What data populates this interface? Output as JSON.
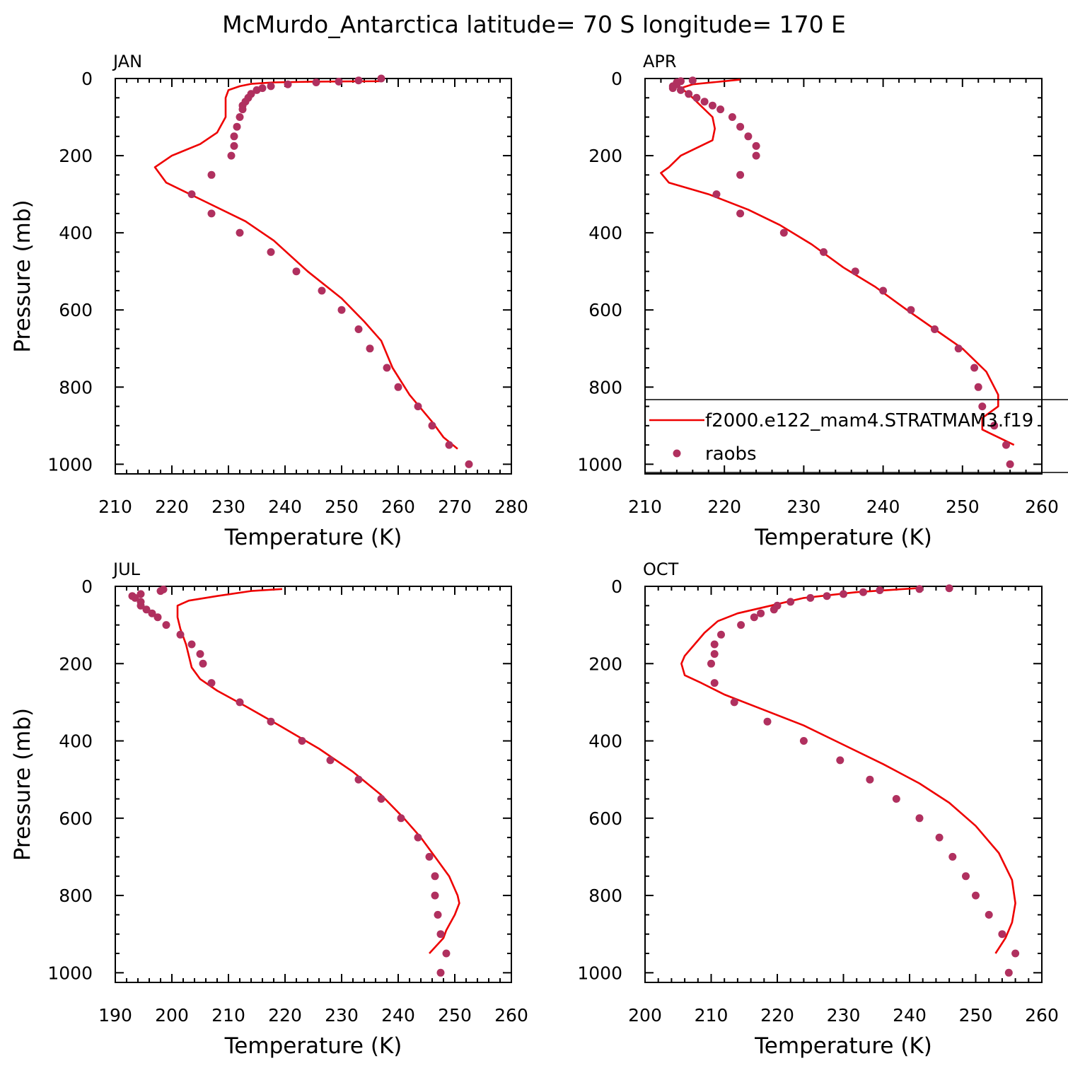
{
  "figure": {
    "title": "McMurdo_Antarctica  latitude= 70 S longitude= 170 E",
    "model_color": "#ee0000",
    "obs_color": "#b0305f"
  },
  "legend": {
    "panel": 1,
    "entries": [
      {
        "label": "f2000.e122_mam4.STRATMAM3.f19",
        "kind": "line"
      },
      {
        "label": "raobs",
        "kind": "marker"
      }
    ]
  },
  "chart_data": [
    {
      "type": "line",
      "title": "JAN",
      "xlabel": "Temperature (K)",
      "ylabel": "Pressure (mb)",
      "xlim": [
        210,
        280
      ],
      "ylim": [
        1025,
        0
      ],
      "xticks": [
        210,
        220,
        230,
        240,
        250,
        260,
        270,
        280
      ],
      "yticks": [
        0,
        200,
        400,
        600,
        800,
        1000
      ],
      "series": [
        {
          "name": "f2000.e122_mam4.STRATMAM3.f19",
          "kind": "line",
          "points": [
            [
              257,
              7
            ],
            [
              245,
              8
            ],
            [
              238,
              10
            ],
            [
              234,
              14
            ],
            [
              232,
              20
            ],
            [
              230,
              30
            ],
            [
              229.5,
              50
            ],
            [
              229.5,
              100
            ],
            [
              228,
              140
            ],
            [
              225,
              170
            ],
            [
              220,
              200
            ],
            [
              217,
              230
            ],
            [
              219,
              270
            ],
            [
              226,
              320
            ],
            [
              233,
              370
            ],
            [
              238,
              420
            ],
            [
              244,
              500
            ],
            [
              250,
              570
            ],
            [
              254,
              630
            ],
            [
              257,
              680
            ],
            [
              259,
              750
            ],
            [
              262,
              820
            ],
            [
              266,
              890
            ],
            [
              268,
              930
            ],
            [
              270.5,
              960
            ]
          ]
        },
        {
          "name": "raobs",
          "kind": "scatter",
          "points": [
            [
              257,
              0
            ],
            [
              253,
              5
            ],
            [
              249.5,
              8
            ],
            [
              245.5,
              10
            ],
            [
              240.5,
              15
            ],
            [
              237.5,
              20
            ],
            [
              236,
              25
            ],
            [
              235,
              30
            ],
            [
              234,
              40
            ],
            [
              233.5,
              50
            ],
            [
              233,
              60
            ],
            [
              232.5,
              70
            ],
            [
              232.5,
              80
            ],
            [
              232,
              100
            ],
            [
              231.5,
              125
            ],
            [
              231,
              150
            ],
            [
              231,
              175
            ],
            [
              230.5,
              200
            ],
            [
              227,
              250
            ],
            [
              223.5,
              300
            ],
            [
              227,
              350
            ],
            [
              232,
              400
            ],
            [
              237.5,
              450
            ],
            [
              242,
              500
            ],
            [
              246.5,
              550
            ],
            [
              250,
              600
            ],
            [
              253,
              650
            ],
            [
              255,
              700
            ],
            [
              258,
              750
            ],
            [
              260,
              800
            ],
            [
              263.5,
              850
            ],
            [
              266,
              900
            ],
            [
              269,
              950
            ],
            [
              272.5,
              1000
            ]
          ]
        }
      ]
    },
    {
      "type": "line",
      "title": "APR",
      "xlabel": "Temperature (K)",
      "ylabel": "",
      "xlim": [
        210,
        260
      ],
      "ylim": [
        1025,
        0
      ],
      "xticks": [
        210,
        220,
        230,
        240,
        250,
        260
      ],
      "yticks": [
        0,
        200,
        400,
        600,
        800,
        1000
      ],
      "series": [
        {
          "name": "f2000.e122_mam4.STRATMAM3.f19",
          "kind": "line",
          "points": [
            [
              222,
              3
            ],
            [
              216,
              15
            ],
            [
              214.5,
              25
            ],
            [
              215.5,
              40
            ],
            [
              217,
              70
            ],
            [
              218.5,
              100
            ],
            [
              218.8,
              130
            ],
            [
              218.5,
              160
            ],
            [
              216.5,
              180
            ],
            [
              214.5,
              200
            ],
            [
              213,
              230
            ],
            [
              212,
              245
            ],
            [
              213,
              270
            ],
            [
              218,
              300
            ],
            [
              223,
              340
            ],
            [
              227,
              380
            ],
            [
              231,
              430
            ],
            [
              235,
              490
            ],
            [
              239,
              540
            ],
            [
              243,
              600
            ],
            [
              246.5,
              650
            ],
            [
              250,
              700
            ],
            [
              253,
              760
            ],
            [
              254.5,
              820
            ],
            [
              254.5,
              850
            ],
            [
              252.5,
              880
            ],
            [
              252.5,
              910
            ],
            [
              254.5,
              930
            ],
            [
              256.5,
              950
            ]
          ]
        },
        {
          "name": "raobs",
          "kind": "scatter",
          "points": [
            [
              216,
              5
            ],
            [
              214.5,
              7
            ],
            [
              214,
              10
            ],
            [
              214,
              15
            ],
            [
              213.5,
              20
            ],
            [
              213.5,
              25
            ],
            [
              214.5,
              30
            ],
            [
              215.5,
              40
            ],
            [
              216.5,
              50
            ],
            [
              217.5,
              60
            ],
            [
              218.5,
              70
            ],
            [
              219.5,
              80
            ],
            [
              221,
              100
            ],
            [
              222,
              125
            ],
            [
              223,
              150
            ],
            [
              224,
              175
            ],
            [
              224,
              200
            ],
            [
              222,
              250
            ],
            [
              219,
              300
            ],
            [
              222,
              350
            ],
            [
              227.5,
              400
            ],
            [
              232.5,
              450
            ],
            [
              236.5,
              500
            ],
            [
              240,
              550
            ],
            [
              243.5,
              600
            ],
            [
              246.5,
              650
            ],
            [
              249.5,
              700
            ],
            [
              251.5,
              750
            ],
            [
              252,
              800
            ],
            [
              252.5,
              850
            ],
            [
              254,
              900
            ],
            [
              255.5,
              950
            ],
            [
              256,
              1000
            ]
          ]
        }
      ]
    },
    {
      "type": "line",
      "title": "JUL",
      "xlabel": "Temperature (K)",
      "ylabel": "Pressure (mb)",
      "xlim": [
        190,
        260
      ],
      "ylim": [
        1025,
        0
      ],
      "xticks": [
        190,
        200,
        210,
        220,
        230,
        240,
        250,
        260
      ],
      "yticks": [
        0,
        200,
        400,
        600,
        800,
        1000
      ],
      "series": [
        {
          "name": "f2000.e122_mam4.STRATMAM3.f19",
          "kind": "line",
          "points": [
            [
              219.5,
              7
            ],
            [
              214,
              12
            ],
            [
              208,
              25
            ],
            [
              203,
              37
            ],
            [
              201,
              50
            ],
            [
              201,
              80
            ],
            [
              201.5,
              110
            ],
            [
              202.5,
              150
            ],
            [
              203,
              180
            ],
            [
              203.5,
              210
            ],
            [
              205,
              240
            ],
            [
              208,
              270
            ],
            [
              213,
              310
            ],
            [
              219,
              360
            ],
            [
              226,
              420
            ],
            [
              232,
              480
            ],
            [
              237,
              540
            ],
            [
              241,
              600
            ],
            [
              244,
              650
            ],
            [
              246.5,
              700
            ],
            [
              249,
              750
            ],
            [
              250.5,
              800
            ],
            [
              250.8,
              820
            ],
            [
              250,
              850
            ],
            [
              248.5,
              890
            ],
            [
              248,
              910
            ],
            [
              245.5,
              950
            ]
          ]
        },
        {
          "name": "raobs",
          "kind": "scatter",
          "points": [
            [
              198.5,
              8
            ],
            [
              198,
              12
            ],
            [
              194.5,
              20
            ],
            [
              193,
              25
            ],
            [
              193.5,
              30
            ],
            [
              194.5,
              40
            ],
            [
              194.5,
              50
            ],
            [
              195.5,
              60
            ],
            [
              196.5,
              70
            ],
            [
              197.5,
              80
            ],
            [
              199,
              100
            ],
            [
              201.5,
              125
            ],
            [
              203.5,
              150
            ],
            [
              205,
              175
            ],
            [
              205.5,
              200
            ],
            [
              207,
              250
            ],
            [
              212,
              300
            ],
            [
              217.5,
              350
            ],
            [
              223,
              400
            ],
            [
              228,
              450
            ],
            [
              233,
              500
            ],
            [
              237,
              550
            ],
            [
              240.5,
              600
            ],
            [
              243.5,
              650
            ],
            [
              245.5,
              700
            ],
            [
              246.5,
              750
            ],
            [
              246.5,
              800
            ],
            [
              247,
              850
            ],
            [
              247.5,
              900
            ],
            [
              248.5,
              950
            ],
            [
              247.5,
              1000
            ]
          ]
        }
      ]
    },
    {
      "type": "line",
      "title": "OCT",
      "xlabel": "Temperature (K)",
      "ylabel": "",
      "xlim": [
        200,
        260
      ],
      "ylim": [
        1025,
        0
      ],
      "xticks": [
        200,
        210,
        220,
        230,
        240,
        250,
        260
      ],
      "yticks": [
        0,
        200,
        400,
        600,
        800,
        1000
      ],
      "series": [
        {
          "name": "f2000.e122_mam4.STRATMAM3.f19",
          "kind": "line",
          "points": [
            [
              241,
              5
            ],
            [
              232,
              15
            ],
            [
              224,
              30
            ],
            [
              219,
              50
            ],
            [
              214,
              70
            ],
            [
              211,
              90
            ],
            [
              209,
              120
            ],
            [
              207.5,
              150
            ],
            [
              206,
              180
            ],
            [
              205.5,
              200
            ],
            [
              206,
              230
            ],
            [
              208.5,
              250
            ],
            [
              212,
              280
            ],
            [
              218,
              320
            ],
            [
              224,
              360
            ],
            [
              230,
              410
            ],
            [
              236,
              460
            ],
            [
              241.5,
              510
            ],
            [
              246,
              560
            ],
            [
              250,
              620
            ],
            [
              253.5,
              690
            ],
            [
              255.5,
              760
            ],
            [
              256,
              820
            ],
            [
              255.5,
              870
            ],
            [
              254.5,
              910
            ],
            [
              253,
              950
            ]
          ]
        },
        {
          "name": "raobs",
          "kind": "scatter",
          "points": [
            [
              246,
              5
            ],
            [
              241.5,
              7
            ],
            [
              235.5,
              10
            ],
            [
              233,
              15
            ],
            [
              230,
              20
            ],
            [
              227.5,
              25
            ],
            [
              225,
              30
            ],
            [
              222,
              40
            ],
            [
              220,
              50
            ],
            [
              219.5,
              60
            ],
            [
              217.5,
              70
            ],
            [
              216.5,
              80
            ],
            [
              214.5,
              100
            ],
            [
              211.5,
              125
            ],
            [
              210.5,
              150
            ],
            [
              210.5,
              175
            ],
            [
              210,
              200
            ],
            [
              210.5,
              250
            ],
            [
              213.5,
              300
            ],
            [
              218.5,
              350
            ],
            [
              224,
              400
            ],
            [
              229.5,
              450
            ],
            [
              234,
              500
            ],
            [
              238,
              550
            ],
            [
              241.5,
              600
            ],
            [
              244.5,
              650
            ],
            [
              246.5,
              700
            ],
            [
              248.5,
              750
            ],
            [
              250,
              800
            ],
            [
              252,
              850
            ],
            [
              254,
              900
            ],
            [
              256,
              950
            ],
            [
              255,
              1000
            ]
          ]
        }
      ]
    }
  ]
}
